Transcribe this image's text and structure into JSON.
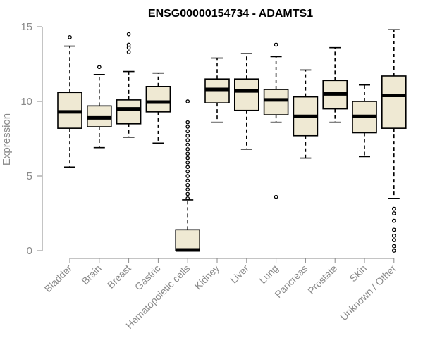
{
  "chart_data": {
    "type": "box",
    "title": "ENSG00000154734 - ADAMTS1",
    "xlabel": "",
    "ylabel": "Expression",
    "ylim": [
      0,
      15
    ],
    "yticks": [
      "0",
      "5",
      "10",
      "15"
    ],
    "grid": false,
    "categories": [
      "Bladder",
      "Brain",
      "Breast",
      "Gastric",
      "Hematopoietic cells",
      "Kidney",
      "Liver",
      "Lung",
      "Pancreas",
      "Prostate",
      "Skin",
      "Unknown / Other"
    ],
    "boxes": [
      {
        "category": "Bladder",
        "min": 5.6,
        "q1": 8.2,
        "median": 9.3,
        "q3": 10.6,
        "max": 13.7,
        "outliers": [
          14.3
        ]
      },
      {
        "category": "Brain",
        "min": 6.9,
        "q1": 8.3,
        "median": 8.9,
        "q3": 9.7,
        "max": 11.8,
        "outliers": [
          12.3
        ]
      },
      {
        "category": "Breast",
        "min": 7.6,
        "q1": 8.5,
        "median": 9.5,
        "q3": 10.1,
        "max": 12.0,
        "outliers": [
          13.3,
          13.6,
          13.8,
          14.5
        ]
      },
      {
        "category": "Gastric",
        "min": 7.2,
        "q1": 9.3,
        "median": 9.95,
        "q3": 11.0,
        "max": 11.9,
        "outliers": []
      },
      {
        "category": "Hematopoietic cells",
        "min": 0.0,
        "q1": 0.0,
        "median": 0.05,
        "q3": 1.4,
        "max": 3.4,
        "outliers": [
          3.5,
          3.8,
          4.1,
          4.4,
          4.7,
          5.0,
          5.3,
          5.6,
          5.9,
          6.2,
          6.5,
          6.8,
          7.1,
          7.4,
          7.7,
          8.0,
          8.3,
          8.6,
          10.0
        ]
      },
      {
        "category": "Kidney",
        "min": 8.6,
        "q1": 9.9,
        "median": 10.8,
        "q3": 11.5,
        "max": 12.9,
        "outliers": []
      },
      {
        "category": "Liver",
        "min": 6.8,
        "q1": 9.4,
        "median": 10.7,
        "q3": 11.5,
        "max": 13.2,
        "outliers": []
      },
      {
        "category": "Lung",
        "min": 8.6,
        "q1": 9.1,
        "median": 10.1,
        "q3": 10.8,
        "max": 13.0,
        "outliers": [
          3.6,
          13.8
        ]
      },
      {
        "category": "Pancreas",
        "min": 6.2,
        "q1": 7.7,
        "median": 9.0,
        "q3": 10.3,
        "max": 12.1,
        "outliers": []
      },
      {
        "category": "Prostate",
        "min": 8.6,
        "q1": 9.5,
        "median": 10.5,
        "q3": 11.4,
        "max": 13.6,
        "outliers": []
      },
      {
        "category": "Skin",
        "min": 6.3,
        "q1": 7.9,
        "median": 9.0,
        "q3": 10.0,
        "max": 11.1,
        "outliers": []
      },
      {
        "category": "Unknown / Other",
        "min": 3.5,
        "q1": 8.2,
        "median": 10.4,
        "q3": 11.7,
        "max": 14.8,
        "outliers": [
          0.0,
          0.3,
          0.7,
          1.0,
          1.4,
          2.0,
          2.5,
          2.8
        ]
      }
    ]
  }
}
